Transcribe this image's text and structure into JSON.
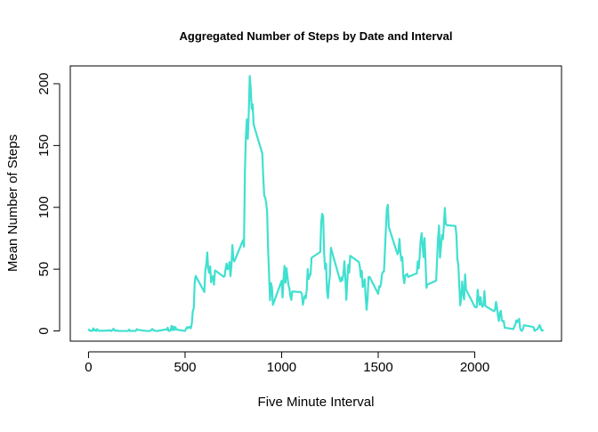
{
  "chart_data": {
    "type": "line",
    "title": "Aggregated Number of Steps by Date and Interval",
    "xlabel": "Five Minute Interval",
    "ylabel": "Mean Number of Steps",
    "xlim": [
      -94.2,
      2449.2
    ],
    "ylim": [
      -8.25,
      214.4
    ],
    "xticks": [
      0,
      500,
      1000,
      1500,
      2000
    ],
    "yticks": [
      0,
      50,
      100,
      150,
      200
    ],
    "x": [
      0,
      5,
      10,
      15,
      20,
      25,
      30,
      35,
      40,
      45,
      50,
      55,
      100,
      105,
      110,
      115,
      120,
      125,
      130,
      135,
      140,
      145,
      150,
      155,
      200,
      205,
      210,
      215,
      220,
      225,
      230,
      235,
      240,
      245,
      250,
      255,
      300,
      305,
      310,
      315,
      320,
      325,
      330,
      335,
      340,
      345,
      350,
      355,
      400,
      405,
      410,
      415,
      420,
      425,
      430,
      435,
      440,
      445,
      450,
      455,
      500,
      505,
      510,
      515,
      520,
      525,
      530,
      535,
      540,
      545,
      550,
      555,
      600,
      605,
      610,
      615,
      620,
      625,
      630,
      635,
      640,
      645,
      650,
      655,
      700,
      705,
      710,
      715,
      720,
      725,
      730,
      735,
      740,
      745,
      750,
      755,
      800,
      805,
      810,
      815,
      820,
      825,
      830,
      835,
      840,
      845,
      850,
      855,
      900,
      905,
      910,
      915,
      920,
      925,
      930,
      935,
      940,
      945,
      950,
      955,
      1000,
      1005,
      1010,
      1015,
      1020,
      1025,
      1030,
      1035,
      1040,
      1045,
      1050,
      1055,
      1100,
      1105,
      1110,
      1115,
      1120,
      1125,
      1130,
      1135,
      1140,
      1145,
      1150,
      1155,
      1200,
      1205,
      1210,
      1215,
      1220,
      1225,
      1230,
      1235,
      1240,
      1245,
      1250,
      1255,
      1300,
      1305,
      1310,
      1315,
      1320,
      1325,
      1330,
      1335,
      1340,
      1345,
      1350,
      1355,
      1400,
      1405,
      1410,
      1415,
      1420,
      1425,
      1430,
      1435,
      1440,
      1445,
      1450,
      1455,
      1500,
      1505,
      1510,
      1515,
      1520,
      1525,
      1530,
      1535,
      1540,
      1545,
      1550,
      1555,
      1600,
      1605,
      1610,
      1615,
      1620,
      1625,
      1630,
      1635,
      1640,
      1645,
      1650,
      1655,
      1700,
      1705,
      1710,
      1715,
      1720,
      1725,
      1730,
      1735,
      1740,
      1745,
      1750,
      1755,
      1800,
      1805,
      1810,
      1815,
      1820,
      1825,
      1830,
      1835,
      1840,
      1845,
      1850,
      1855,
      1900,
      1905,
      1910,
      1915,
      1920,
      1925,
      1930,
      1935,
      1940,
      1945,
      1950,
      1955,
      2000,
      2005,
      2010,
      2015,
      2020,
      2025,
      2030,
      2035,
      2040,
      2045,
      2050,
      2055,
      2100,
      2105,
      2110,
      2115,
      2120,
      2125,
      2130,
      2135,
      2140,
      2145,
      2150,
      2155,
      2200,
      2205,
      2210,
      2215,
      2220,
      2225,
      2230,
      2235,
      2240,
      2245,
      2250,
      2255,
      2300,
      2305,
      2310,
      2315,
      2320,
      2325,
      2330,
      2335,
      2340,
      2345,
      2350,
      2355
    ],
    "series": [
      {
        "color": "#40e0d0",
        "values": [
          1.7,
          0.3,
          0.1,
          0.2,
          0.1,
          2.1,
          0.5,
          0.9,
          0,
          1.5,
          0.3,
          0.1,
          0.3,
          0.7,
          0.2,
          0.3,
          0,
          1.1,
          1.8,
          0.2,
          0.2,
          0.4,
          0.3,
          0,
          0,
          0,
          1.1,
          0,
          0,
          0.1,
          0,
          0.2,
          0,
          0,
          1.5,
          0.9,
          0,
          0,
          0,
          0,
          0.2,
          0.6,
          1.6,
          0.6,
          0.5,
          0.1,
          0,
          0,
          1.2,
          0.9,
          2.6,
          0,
          0.3,
          0.4,
          4.1,
          0.7,
          3.5,
          0.8,
          3.1,
          1.1,
          0,
          1.6,
          3.0,
          2.2,
          3.3,
          3.0,
          2.1,
          6.1,
          16.0,
          18.3,
          39.5,
          44.5,
          31.5,
          49.3,
          53.8,
          63.5,
          50.0,
          47.1,
          52.2,
          39.3,
          44.0,
          44.2,
          37.4,
          49.0,
          43.8,
          44.4,
          50.5,
          54.5,
          49.9,
          50.8,
          55.7,
          44.3,
          52.3,
          69.5,
          57.8,
          56.2,
          73.4,
          68.2,
          129.4,
          157.5,
          171.2,
          155.4,
          177.3,
          206.2,
          195.9,
          179.6,
          183.4,
          167.0,
          143.5,
          124.0,
          109.1,
          108.1,
          103.7,
          95.9,
          66.2,
          45.2,
          24.8,
          38.8,
          35.0,
          21.1,
          40.6,
          27.0,
          42.4,
          52.7,
          38.9,
          50.8,
          44.3,
          37.4,
          34.7,
          28.3,
          25.1,
          31.9,
          31.4,
          29.7,
          21.3,
          25.5,
          28.4,
          26.5,
          33.4,
          50.0,
          42.0,
          44.6,
          46.0,
          59.2,
          63.9,
          87.7,
          94.8,
          92.8,
          63.4,
          50.2,
          54.5,
          32.4,
          26.5,
          37.7,
          45.1,
          67.3,
          42.3,
          39.9,
          43.3,
          41.0,
          46.2,
          56.4,
          42.8,
          25.1,
          40.0,
          53.5,
          47.3,
          60.8,
          55.8,
          52.0,
          43.6,
          48.7,
          35.5,
          37.5,
          41.8,
          27.5,
          17.1,
          26.1,
          43.6,
          43.8,
          30.0,
          36.1,
          35.5,
          38.8,
          46.0,
          47.8,
          48.1,
          65.3,
          82.9,
          98.7,
          102.1,
          84.0,
          62.1,
          64.1,
          74.5,
          63.2,
          56.9,
          59.8,
          43.9,
          38.6,
          44.7,
          45.5,
          46.2,
          43.7,
          46.6,
          56.3,
          50.7,
          61.2,
          73.4,
          79.1,
          68.9,
          59.7,
          75.1,
          56.5,
          34.8,
          37.5,
          40.7,
          58.0,
          74.7,
          85.3,
          59.3,
          67.8,
          77.7,
          74.2,
          85.3,
          99.5,
          86.6,
          85.6,
          84.9,
          77.8,
          58.0,
          53.4,
          36.3,
          20.7,
          27.4,
          40.0,
          30.2,
          25.5,
          45.7,
          33.5,
          19.6,
          19.0,
          19.3,
          33.3,
          26.8,
          21.2,
          27.3,
          21.3,
          19.5,
          21.3,
          32.3,
          20.2,
          15.9,
          17.2,
          23.5,
          19.2,
          12.5,
          8.0,
          14.7,
          16.3,
          8.7,
          7.8,
          8.1,
          2.6,
          1.5,
          3.7,
          4.8,
          8.5,
          7.1,
          8.7,
          9.8,
          2.2,
          0.3,
          0.1,
          1.6,
          4.6,
          3.3,
          2.8,
          0,
          0.8,
          1.0,
          1.6,
          2.6,
          4.7,
          3.3,
          0.6,
          0.2,
          1.1
        ]
      }
    ]
  }
}
